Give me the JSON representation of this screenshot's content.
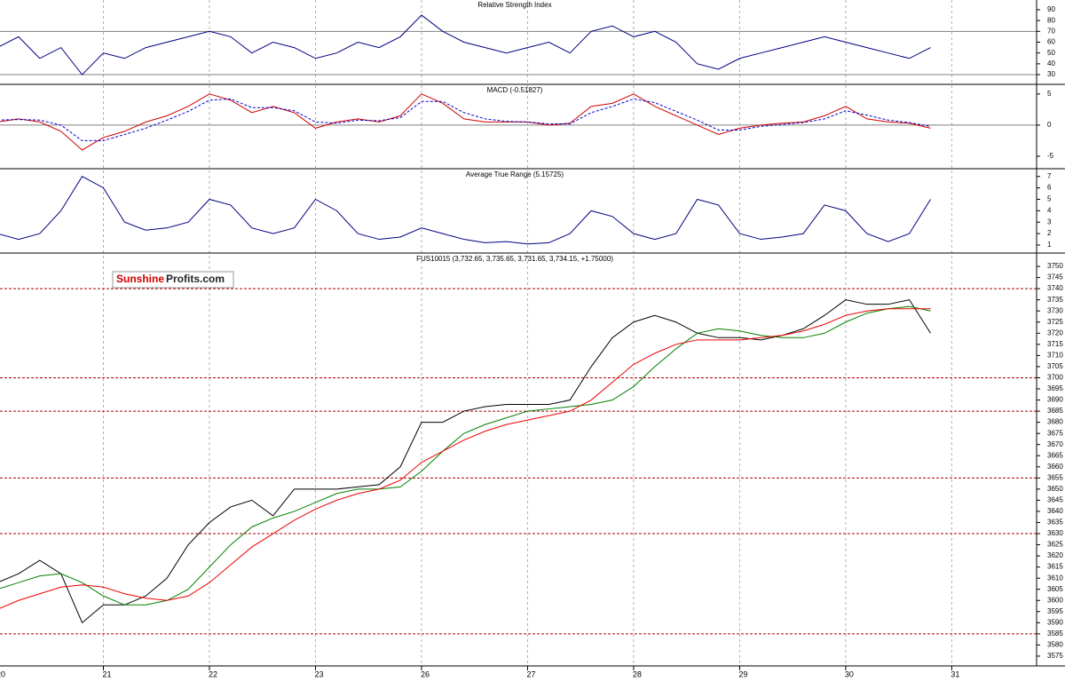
{
  "logo": {
    "part1": "Sunshine",
    "part2": "Profits.com"
  },
  "chart_data": [
    {
      "type": "line",
      "title": "Relative Strength Index",
      "ylim": [
        21,
        99
      ],
      "yticks": [
        30,
        40,
        50,
        60,
        70,
        80,
        90
      ],
      "hlines": [
        70,
        30
      ],
      "hline_color": "#808080",
      "series": [
        {
          "color": "#000080",
          "style": "solid",
          "values": [
            55,
            65,
            45,
            55,
            30,
            50,
            45,
            55,
            60,
            65,
            70,
            65,
            50,
            60,
            55,
            45,
            50,
            60,
            55,
            65,
            85,
            70,
            60,
            55,
            50,
            55,
            60,
            50,
            70,
            75,
            65,
            70,
            60,
            40,
            35,
            45,
            50,
            55,
            60,
            65,
            60,
            55,
            50,
            45,
            55
          ]
        }
      ]
    },
    {
      "type": "line",
      "title": "MACD (-0.51827)",
      "ylim": [
        -7,
        6.4
      ],
      "yticks": [
        5,
        0,
        -5
      ],
      "hlines": [
        0
      ],
      "hline_color": "#808080",
      "series": [
        {
          "color": "#cc0000",
          "style": "solid",
          "values": [
            0.5,
            1,
            0.5,
            -1,
            -4,
            -2,
            -1,
            0.5,
            1.5,
            3,
            5,
            4,
            2,
            3,
            2,
            -0.5,
            0.5,
            1,
            0.5,
            1.5,
            5,
            3.5,
            1,
            0.5,
            0.5,
            0.5,
            0,
            0.3,
            3,
            3.5,
            5,
            3,
            1.5,
            0,
            -1.5,
            -0.5,
            0,
            0.3,
            0.5,
            1.5,
            3,
            1,
            0.5,
            0.3,
            -0.5
          ]
        },
        {
          "color": "#0000cc",
          "style": "dashed",
          "values": [
            0.8,
            0.9,
            0.8,
            0,
            -2.5,
            -2.5,
            -1.5,
            -0.5,
            0.8,
            2.2,
            4,
            4.2,
            2.8,
            2.8,
            2.3,
            0.5,
            0.3,
            0.8,
            0.7,
            1.2,
            3.8,
            3.8,
            2,
            1,
            0.6,
            0.5,
            0.2,
            0.2,
            2,
            3,
            4.2,
            3.6,
            2.2,
            0.8,
            -0.8,
            -0.8,
            -0.2,
            0.1,
            0.4,
            1,
            2.3,
            1.6,
            0.8,
            0.4,
            -0.2
          ]
        }
      ]
    },
    {
      "type": "line",
      "title": "Average True Range (5.15725)",
      "ylim": [
        0.3,
        7.6
      ],
      "yticks": [
        1,
        2,
        3,
        4,
        5,
        6,
        7
      ],
      "series": [
        {
          "color": "#000080",
          "style": "solid",
          "values": [
            2,
            1.5,
            2,
            4,
            7,
            6,
            3,
            2.3,
            2.5,
            3,
            5,
            4.5,
            2.5,
            2,
            2.5,
            5,
            4,
            2,
            1.5,
            1.7,
            2.5,
            2,
            1.5,
            1.2,
            1.3,
            1.1,
            1.2,
            2,
            4,
            3.5,
            2,
            1.5,
            2,
            5,
            4.5,
            2,
            1.5,
            1.7,
            2,
            4.5,
            4,
            2,
            1.3,
            2,
            5
          ]
        }
      ]
    },
    {
      "type": "line",
      "title": "FUS10015 (3,732.65, 3,735.65, 3,731.65, 3,734.15, +1.75000)",
      "ylim": [
        3570.6,
        3755.6
      ],
      "yticks": [
        3575,
        3580,
        3585,
        3590,
        3595,
        3600,
        3605,
        3610,
        3615,
        3620,
        3625,
        3630,
        3635,
        3640,
        3645,
        3650,
        3655,
        3660,
        3665,
        3670,
        3675,
        3680,
        3685,
        3690,
        3695,
        3700,
        3705,
        3710,
        3715,
        3720,
        3725,
        3730,
        3735,
        3740,
        3745,
        3750
      ],
      "hlines": [
        3740,
        3700,
        3685,
        3655,
        3630,
        3585
      ],
      "hline_color": "#aa0000",
      "xlim": [
        0,
        9.8
      ],
      "xticks": [
        {
          "value": 0,
          "label": "20"
        },
        {
          "value": 1,
          "label": "21"
        },
        {
          "value": 2,
          "label": "22"
        },
        {
          "value": 3,
          "label": "23"
        },
        {
          "value": 4,
          "label": "26"
        },
        {
          "value": 5,
          "label": "27"
        },
        {
          "value": 6,
          "label": "28"
        },
        {
          "value": 7,
          "label": "29"
        },
        {
          "value": 8,
          "label": "30"
        },
        {
          "value": 9,
          "label": "31"
        }
      ],
      "x": [
        0,
        0.2,
        0.4,
        0.6,
        0.8,
        1,
        1.2,
        1.4,
        1.6,
        1.8,
        2,
        2.2,
        2.4,
        2.6,
        2.8,
        3,
        3.2,
        3.4,
        3.6,
        3.8,
        4,
        4.2,
        4.4,
        4.6,
        4.8,
        5,
        5.2,
        5.4,
        5.6,
        5.8,
        6,
        6.2,
        6.4,
        6.6,
        6.8,
        7,
        7.2,
        7.4,
        7.6,
        7.8,
        8,
        8.2,
        8.4,
        8.6,
        8.8
      ],
      "series": [
        {
          "color": "#000000",
          "style": "solid",
          "values": [
            3608,
            3612,
            3618,
            3612,
            3590,
            3598,
            3598,
            3602,
            3610,
            3625,
            3635,
            3642,
            3645,
            3638,
            3650,
            3650,
            3650,
            3651,
            3652,
            3660,
            3680,
            3680,
            3685,
            3687,
            3688,
            3688,
            3688,
            3690,
            3705,
            3718,
            3725,
            3728,
            3725,
            3720,
            3718,
            3718,
            3717,
            3719,
            3722,
            3728,
            3735,
            3733,
            3733,
            3735,
            3720
          ]
        },
        {
          "color": "#008000",
          "style": "solid",
          "values": [
            3605,
            3608,
            3611,
            3612,
            3608,
            3602,
            3598,
            3598,
            3600,
            3605,
            3615,
            3625,
            3633,
            3637,
            3640,
            3644,
            3648,
            3650,
            3650,
            3651,
            3658,
            3667,
            3675,
            3679,
            3682,
            3685,
            3686,
            3687,
            3688,
            3690,
            3696,
            3705,
            3713,
            3720,
            3722,
            3721,
            3719,
            3718,
            3718,
            3720,
            3725,
            3729,
            3731,
            3732,
            3730
          ]
        },
        {
          "color": "#ee0000",
          "style": "solid",
          "values": [
            3596,
            3600,
            3603,
            3606,
            3607,
            3606,
            3603,
            3601,
            3600,
            3602,
            3608,
            3616,
            3624,
            3630,
            3636,
            3641,
            3645,
            3648,
            3650,
            3654,
            3662,
            3667,
            3672,
            3676,
            3679,
            3681,
            3683,
            3685,
            3690,
            3698,
            3706,
            3711,
            3715,
            3717,
            3717,
            3717,
            3718,
            3719,
            3721,
            3724,
            3728,
            3730,
            3731,
            3731,
            3731
          ]
        }
      ]
    }
  ]
}
